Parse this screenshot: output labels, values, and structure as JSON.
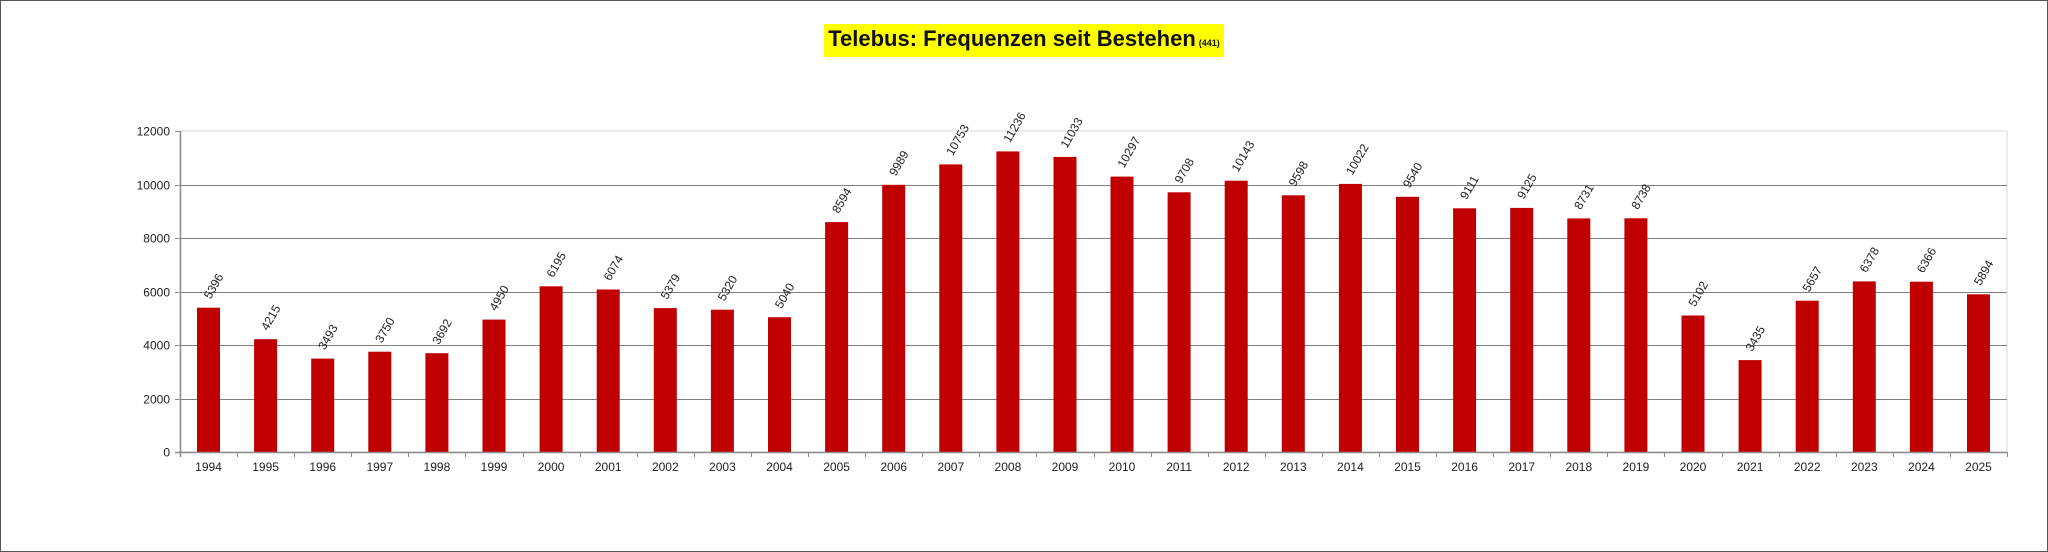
{
  "title": {
    "main": "Telebus: Frequenzen seit Bestehen",
    "sub": "(441)",
    "highlight_color": "#ffff00"
  },
  "colors": {
    "bar": "#c00000",
    "grid": "#7f7f7f",
    "axis": "#8c8c8c",
    "frame": "#555555"
  },
  "chart_data": {
    "type": "bar",
    "title": "Telebus: Frequenzen seit Bestehen (441)",
    "xlabel": "",
    "ylabel": "",
    "ylim": [
      0,
      12000
    ],
    "yticks": [
      0,
      2000,
      4000,
      6000,
      8000,
      10000,
      12000
    ],
    "grid": true,
    "legend": null,
    "data_labels": true,
    "data_label_rotation": -60,
    "categories": [
      "1994",
      "1995",
      "1996",
      "1997",
      "1998",
      "1999",
      "2000",
      "2001",
      "2002",
      "2003",
      "2004",
      "2005",
      "2006",
      "2007",
      "2008",
      "2009",
      "2010",
      "2011",
      "2012",
      "2013",
      "2014",
      "2015",
      "2016",
      "2017",
      "2018",
      "2019",
      "2020",
      "2021",
      "2022",
      "2023",
      "2024",
      "2025"
    ],
    "values": [
      5396,
      4215,
      3493,
      3750,
      3692,
      4950,
      6195,
      6074,
      5379,
      5320,
      5040,
      8594,
      9989,
      10753,
      11236,
      11033,
      10297,
      9708,
      10143,
      9598,
      10022,
      9540,
      9111,
      9125,
      8731,
      8738,
      5102,
      3435,
      5657,
      6378,
      6366,
      5894
    ]
  }
}
